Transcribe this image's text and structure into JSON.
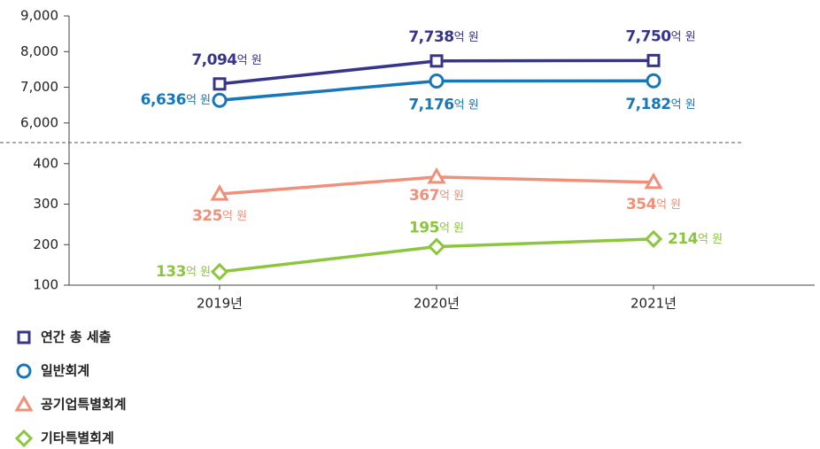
{
  "chart_data": [
    {
      "type": "line",
      "ylim": [
        5450,
        9000
      ],
      "yticks": [
        {
          "value": 6000,
          "label": "6,000"
        },
        {
          "value": 7000,
          "label": "7,000"
        },
        {
          "value": 8000,
          "label": "8,000"
        },
        {
          "value": 9000,
          "label": "9,000"
        }
      ],
      "value_label_unit": "억 원",
      "series": [
        {
          "name": "연간 총 세출",
          "color": "#37348b",
          "marker": "square",
          "values": [
            7094,
            7738,
            7750
          ],
          "value_labels": [
            "7,094",
            "7,738",
            "7,750"
          ]
        },
        {
          "name": "일반회계",
          "color": "#1877b8",
          "marker": "circle",
          "values": [
            6636,
            7176,
            7182
          ],
          "value_labels": [
            "6,636",
            "7,176",
            "7,182"
          ]
        }
      ]
    },
    {
      "type": "line",
      "categories": [
        "2019년",
        "2020년",
        "2021년"
      ],
      "ylim": [
        100,
        452
      ],
      "yticks": [
        100,
        200,
        300,
        400
      ],
      "value_label_unit": "억 원",
      "series": [
        {
          "name": "공기업특별회계",
          "color": "#f0907a",
          "marker": "triangle",
          "values": [
            325,
            367,
            354
          ]
        },
        {
          "name": "기타특별회계",
          "color": "#8cc63f",
          "marker": "diamond",
          "values": [
            133,
            195,
            214
          ]
        }
      ]
    }
  ]
}
